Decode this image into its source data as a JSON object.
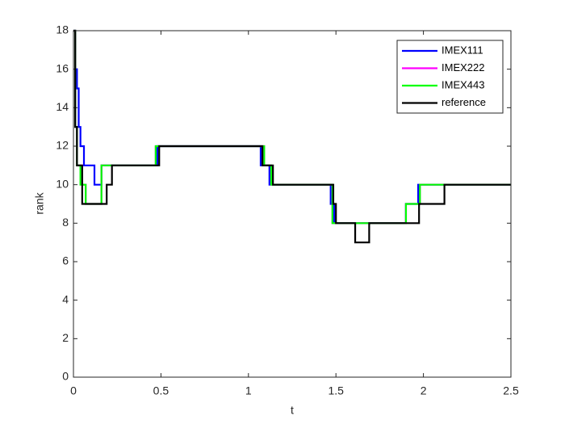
{
  "chart_data": {
    "type": "line",
    "xlabel": "t",
    "ylabel": "rank",
    "xlim": [
      0,
      2.5
    ],
    "ylim": [
      0,
      18
    ],
    "xticks": [
      0,
      0.5,
      1,
      1.5,
      2,
      2.5
    ],
    "yticks": [
      0,
      2,
      4,
      6,
      8,
      10,
      12,
      14,
      16,
      18
    ],
    "legend": "northeast",
    "series": [
      {
        "name": "IMEX111",
        "color": "#0000ff",
        "x": [
          0,
          0.01,
          0.01,
          0.02,
          0.02,
          0.03,
          0.03,
          0.04,
          0.04,
          0.06,
          0.06,
          0.12,
          0.12,
          0.16,
          0.16,
          0.48,
          0.48,
          1.07,
          1.07,
          1.12,
          1.12,
          1.47,
          1.47,
          1.49,
          1.49,
          1.9,
          1.9,
          1.97,
          1.97,
          2.5
        ],
        "values": [
          18,
          18,
          16,
          16,
          15,
          15,
          13,
          13,
          12,
          12,
          11,
          11,
          10,
          10,
          11,
          11,
          12,
          12,
          11,
          11,
          10,
          10,
          9,
          9,
          8,
          8,
          9,
          9,
          10,
          10
        ]
      },
      {
        "name": "IMEX222",
        "color": "#ff00ff",
        "x": [
          0,
          0.01,
          0.01,
          0.02,
          0.02,
          0.05,
          0.05,
          0.07,
          0.07,
          0.16,
          0.16,
          0.47,
          0.47,
          1.09,
          1.09,
          1.13,
          1.13,
          1.48,
          1.48,
          1.9,
          1.9,
          1.98,
          1.98,
          2.5
        ],
        "values": [
          18,
          18,
          13,
          13,
          11,
          11,
          10,
          10,
          9,
          9,
          11,
          11,
          12,
          12,
          11,
          11,
          10,
          10,
          8,
          8,
          9,
          9,
          10,
          10
        ]
      },
      {
        "name": "IMEX443",
        "color": "#00ff00",
        "x": [
          0,
          0.01,
          0.01,
          0.02,
          0.02,
          0.04,
          0.04,
          0.07,
          0.07,
          0.16,
          0.16,
          0.47,
          0.47,
          1.09,
          1.09,
          1.13,
          1.13,
          1.48,
          1.48,
          1.9,
          1.9,
          1.98,
          1.98,
          2.5
        ],
        "values": [
          18,
          18,
          13,
          13,
          11,
          11,
          10,
          10,
          9,
          9,
          11,
          11,
          12,
          12,
          11,
          11,
          10,
          10,
          8,
          8,
          9,
          9,
          10,
          10
        ]
      },
      {
        "name": "reference",
        "color": "#000000",
        "x": [
          0,
          0.01,
          0.01,
          0.02,
          0.02,
          0.05,
          0.05,
          0.19,
          0.19,
          0.22,
          0.22,
          0.49,
          0.49,
          1.08,
          1.08,
          1.14,
          1.14,
          1.485,
          1.485,
          1.5,
          1.5,
          1.61,
          1.61,
          1.69,
          1.69,
          1.975,
          1.975,
          2.12,
          2.12,
          2.5
        ],
        "values": [
          18,
          18,
          13,
          13,
          11,
          11,
          9,
          9,
          10,
          10,
          11,
          11,
          12,
          12,
          11,
          11,
          10,
          10,
          9,
          9,
          8,
          8,
          7,
          7,
          8,
          8,
          9,
          9,
          10,
          10
        ]
      }
    ]
  }
}
